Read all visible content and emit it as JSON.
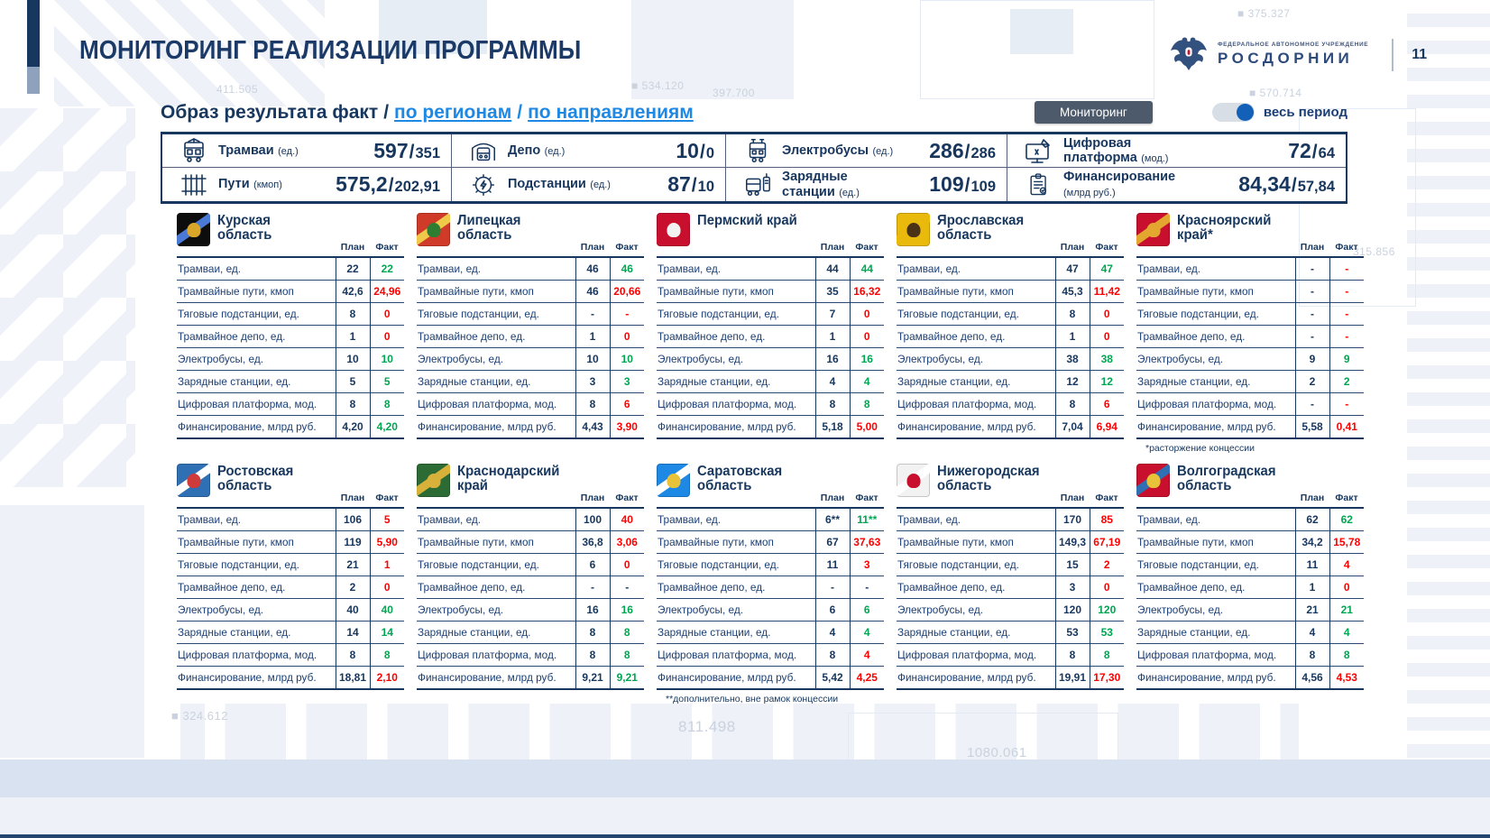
{
  "page": {
    "title": "МОНИТОРИНГ РЕАЛИЗАЦИИ ПРОГРАММЫ",
    "page_number": "11",
    "logo": {
      "org_type": "ФЕДЕРАЛЬНОЕ АВТОНОМНОЕ УЧРЕЖДЕНИЕ",
      "org_name": "РОСДОРНИИ"
    }
  },
  "colors": {
    "navy": "#17375e",
    "link_blue": "#1e88e5",
    "green": "#00a651",
    "red": "#ff0000",
    "button_bg": "#4d5a6b",
    "toggle_knob": "#1260b8",
    "band": "#d9e2f0"
  },
  "toolbar": {
    "heading_main": "Образ результата факт",
    "sep1": "/",
    "link_regions": "по регионам",
    "sep2": "/",
    "link_directions": "по направлениям",
    "monitoring_button": "Мониторинг",
    "toggle_label": "весь период",
    "toggle_state": "on"
  },
  "summary": {
    "value_sep": "/",
    "items": [
      {
        "icon": "tram-icon",
        "label": "Трамваи",
        "unit": "(ед.)",
        "plan": "597",
        "fact": "351"
      },
      {
        "icon": "depot-icon",
        "label": "Депо",
        "unit": "(ед.)",
        "plan": "10",
        "fact": "0"
      },
      {
        "icon": "electrobus-icon",
        "label": "Электробусы",
        "unit": "(ед.)",
        "plan": "286",
        "fact": "286"
      },
      {
        "icon": "digital-platform-icon",
        "label": "Цифровая платформа",
        "unit": "(мод.)",
        "plan": "72",
        "fact": "64"
      },
      {
        "icon": "tracks-icon",
        "label": "Пути",
        "unit": "(кмоп)",
        "plan": "575,2",
        "fact": "202,91"
      },
      {
        "icon": "substation-icon",
        "label": "Подстанции",
        "unit": "(ед.)",
        "plan": "87",
        "fact": "10"
      },
      {
        "icon": "charging-station-icon",
        "label": "Зарядные станции",
        "unit": "(ед.)",
        "plan": "109",
        "fact": "109"
      },
      {
        "icon": "financing-icon",
        "label": "Финансирование",
        "unit": "(млрд руб.)",
        "plan": "84,34",
        "fact": "57,84"
      }
    ]
  },
  "col_headers": {
    "plan": "План",
    "fact": "Факт"
  },
  "row_labels": [
    "Трамваи, ед.",
    "Трамвайные пути, кмоп",
    "Тяговые подстанции, ед.",
    "Трамвайное депо, ед.",
    "Электробусы, ед.",
    "Зарядные станции, ед.",
    "Цифровая платформа, мод.",
    "Финансирование, млрд руб."
  ],
  "regions": [
    {
      "name": "Курская область",
      "emblem": {
        "base": "#0d0d0d",
        "stripe": "#4a79d6",
        "accent": "#d9a62a"
      },
      "rows": [
        {
          "plan": "22",
          "fact": "22",
          "status": "g"
        },
        {
          "plan": "42,6",
          "fact": "24,96",
          "status": "r"
        },
        {
          "plan": "8",
          "fact": "0",
          "status": "r"
        },
        {
          "plan": "1",
          "fact": "0",
          "status": "r"
        },
        {
          "plan": "10",
          "fact": "10",
          "status": "g"
        },
        {
          "plan": "5",
          "fact": "5",
          "status": "g"
        },
        {
          "plan": "8",
          "fact": "8",
          "status": "g"
        },
        {
          "plan": "4,20",
          "fact": "4,20",
          "status": "g"
        }
      ]
    },
    {
      "name": "Липецкая область",
      "emblem": {
        "base": "#d03a28",
        "stripe": "#f0c94a",
        "accent": "#2e7d32"
      },
      "rows": [
        {
          "plan": "46",
          "fact": "46",
          "status": "g"
        },
        {
          "plan": "46",
          "fact": "20,66",
          "status": "r"
        },
        {
          "plan": "-",
          "fact": "-",
          "status": "r"
        },
        {
          "plan": "1",
          "fact": "0",
          "status": "r"
        },
        {
          "plan": "10",
          "fact": "10",
          "status": "g"
        },
        {
          "plan": "3",
          "fact": "3",
          "status": "g"
        },
        {
          "plan": "8",
          "fact": "6",
          "status": "r"
        },
        {
          "plan": "4,43",
          "fact": "3,90",
          "status": "r"
        }
      ]
    },
    {
      "name": "Пермский край",
      "emblem": {
        "base": "#c8102e",
        "stripe": "#c8102e",
        "accent": "#f2f2f2"
      },
      "rows": [
        {
          "plan": "44",
          "fact": "44",
          "status": "g"
        },
        {
          "plan": "35",
          "fact": "16,32",
          "status": "r"
        },
        {
          "plan": "7",
          "fact": "0",
          "status": "r"
        },
        {
          "plan": "1",
          "fact": "0",
          "status": "r"
        },
        {
          "plan": "16",
          "fact": "16",
          "status": "g"
        },
        {
          "plan": "4",
          "fact": "4",
          "status": "g"
        },
        {
          "plan": "8",
          "fact": "8",
          "status": "g"
        },
        {
          "plan": "5,18",
          "fact": "5,00",
          "status": "r"
        }
      ]
    },
    {
      "name": "Ярославская область",
      "emblem": {
        "base": "#e9b90c",
        "stripe": "#e9b90c",
        "accent": "#4a3217"
      },
      "rows": [
        {
          "plan": "47",
          "fact": "47",
          "status": "g"
        },
        {
          "plan": "45,3",
          "fact": "11,42",
          "status": "r"
        },
        {
          "plan": "8",
          "fact": "0",
          "status": "r"
        },
        {
          "plan": "1",
          "fact": "0",
          "status": "r"
        },
        {
          "plan": "38",
          "fact": "38",
          "status": "g"
        },
        {
          "plan": "12",
          "fact": "12",
          "status": "g"
        },
        {
          "plan": "8",
          "fact": "6",
          "status": "r"
        },
        {
          "plan": "7,04",
          "fact": "6,94",
          "status": "r"
        }
      ]
    },
    {
      "name": "Красноярский край*",
      "emblem": {
        "base": "#c8102e",
        "stripe": "#e3a72f",
        "accent": "#e3a72f"
      },
      "footnote": "*расторжение концессии",
      "rows": [
        {
          "plan": "-",
          "fact": "-",
          "status": "r"
        },
        {
          "plan": "-",
          "fact": "-",
          "status": "r"
        },
        {
          "plan": "-",
          "fact": "-",
          "status": "r"
        },
        {
          "plan": "-",
          "fact": "-",
          "status": "r"
        },
        {
          "plan": "9",
          "fact": "9",
          "status": "g"
        },
        {
          "plan": "2",
          "fact": "2",
          "status": "g"
        },
        {
          "plan": "-",
          "fact": "-",
          "status": "r"
        },
        {
          "plan": "5,58",
          "fact": "0,41",
          "status": "r"
        }
      ]
    },
    {
      "name": "Ростовская область",
      "emblem": {
        "base": "#2f6fb4",
        "stripe": "#ffffff",
        "accent": "#cf3a3a"
      },
      "rows": [
        {
          "plan": "106",
          "fact": "5",
          "status": "r"
        },
        {
          "plan": "119",
          "fact": "5,90",
          "status": "r"
        },
        {
          "plan": "21",
          "fact": "1",
          "status": "r"
        },
        {
          "plan": "2",
          "fact": "0",
          "status": "r"
        },
        {
          "plan": "40",
          "fact": "40",
          "status": "g"
        },
        {
          "plan": "14",
          "fact": "14",
          "status": "g"
        },
        {
          "plan": "8",
          "fact": "8",
          "status": "g"
        },
        {
          "plan": "18,81",
          "fact": "2,10",
          "status": "r"
        }
      ]
    },
    {
      "name": "Краснодарский край",
      "emblem": {
        "base": "#2d6b35",
        "stripe": "#d8b13a",
        "accent": "#d8b13a"
      },
      "rows": [
        {
          "plan": "100",
          "fact": "40",
          "status": "r"
        },
        {
          "plan": "36,8",
          "fact": "3,06",
          "status": "r"
        },
        {
          "plan": "6",
          "fact": "0",
          "status": "r"
        },
        {
          "plan": "-",
          "fact": "-",
          "status": "n"
        },
        {
          "plan": "16",
          "fact": "16",
          "status": "g"
        },
        {
          "plan": "8",
          "fact": "8",
          "status": "g"
        },
        {
          "plan": "8",
          "fact": "8",
          "status": "g"
        },
        {
          "plan": "9,21",
          "fact": "9,21",
          "status": "g"
        }
      ]
    },
    {
      "name": "Саратовская область",
      "emblem": {
        "base": "#1e88e5",
        "stripe": "#ffffff",
        "accent": "#e8c33a"
      },
      "footnote": "**дополнительно, вне рамок концессии",
      "rows": [
        {
          "plan": "6**",
          "fact": "11**",
          "status": "g"
        },
        {
          "plan": "67",
          "fact": "37,63",
          "status": "r"
        },
        {
          "plan": "11",
          "fact": "3",
          "status": "r"
        },
        {
          "plan": "-",
          "fact": "-",
          "status": "n"
        },
        {
          "plan": "6",
          "fact": "6",
          "status": "g"
        },
        {
          "plan": "4",
          "fact": "4",
          "status": "g"
        },
        {
          "plan": "8",
          "fact": "4",
          "status": "r"
        },
        {
          "plan": "5,42",
          "fact": "4,25",
          "status": "r"
        }
      ]
    },
    {
      "name": "Нижегородская область",
      "emblem": {
        "base": "#f2f2f2",
        "stripe": "#ffffff",
        "accent": "#c8102e"
      },
      "rows": [
        {
          "plan": "170",
          "fact": "85",
          "status": "r"
        },
        {
          "plan": "149,3",
          "fact": "67,19",
          "status": "r"
        },
        {
          "plan": "15",
          "fact": "2",
          "status": "r"
        },
        {
          "plan": "3",
          "fact": "0",
          "status": "r"
        },
        {
          "plan": "120",
          "fact": "120",
          "status": "g"
        },
        {
          "plan": "53",
          "fact": "53",
          "status": "g"
        },
        {
          "plan": "8",
          "fact": "8",
          "status": "g"
        },
        {
          "plan": "19,91",
          "fact": "17,30",
          "status": "r"
        }
      ]
    },
    {
      "name": "Волгоградская область",
      "emblem": {
        "base": "#c8102e",
        "stripe": "#2f6fb4",
        "accent": "#e8c33a"
      },
      "rows": [
        {
          "plan": "62",
          "fact": "62",
          "status": "g"
        },
        {
          "plan": "34,2",
          "fact": "15,78",
          "status": "r"
        },
        {
          "plan": "11",
          "fact": "4",
          "status": "r"
        },
        {
          "plan": "1",
          "fact": "0",
          "status": "r"
        },
        {
          "plan": "21",
          "fact": "21",
          "status": "g"
        },
        {
          "plan": "4",
          "fact": "4",
          "status": "g"
        },
        {
          "plan": "8",
          "fact": "8",
          "status": "g"
        },
        {
          "plan": "4,56",
          "fact": "4,53",
          "status": "r"
        }
      ]
    }
  ],
  "background_labels": [
    "411.505",
    "■ 534.120",
    "397.700",
    "■ 375.327",
    "■ 570.714",
    "315.856",
    "■ 324.612",
    "811.498",
    "1080.061"
  ]
}
